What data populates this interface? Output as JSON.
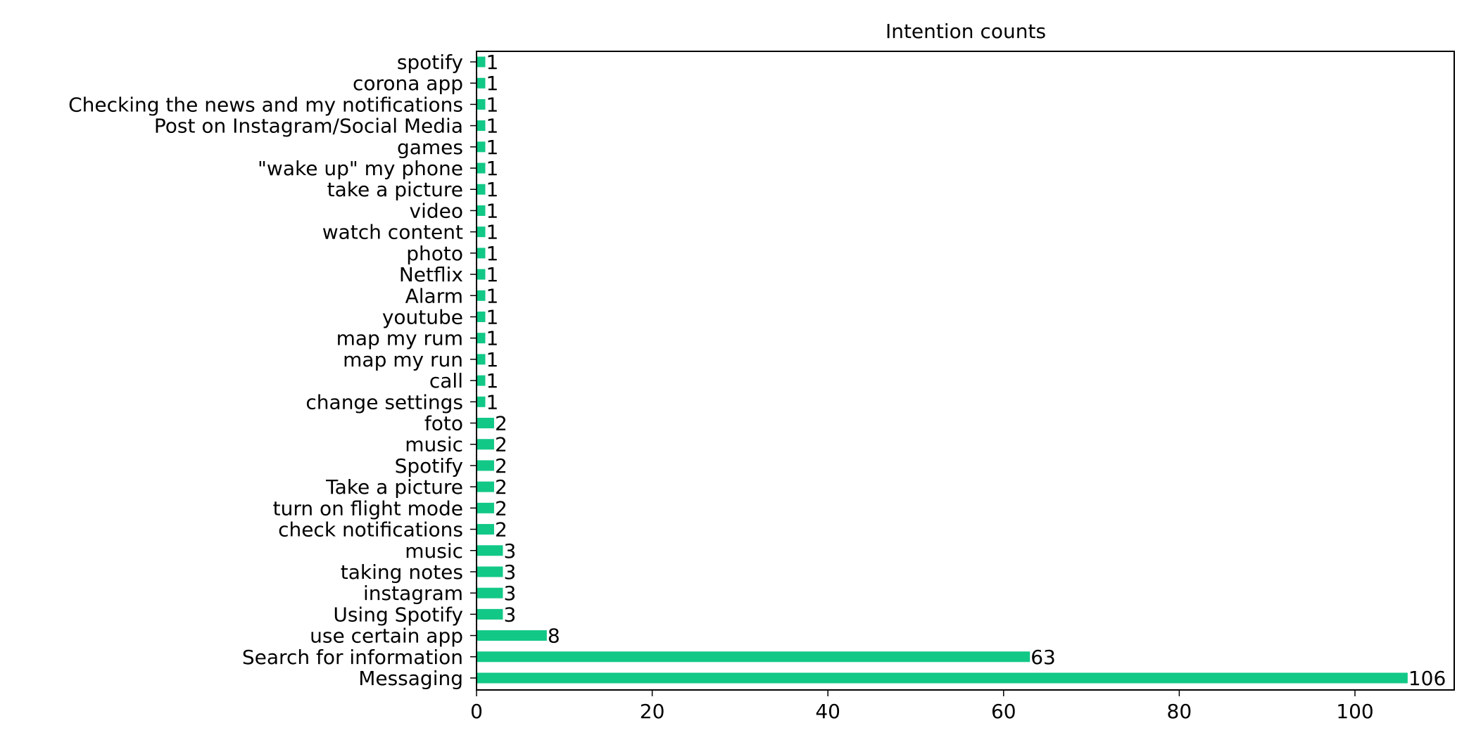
{
  "chart_data": {
    "type": "bar",
    "orientation": "horizontal",
    "title": "Intention counts",
    "xlabel": "",
    "ylabel": "",
    "xlim": [
      0,
      111.3
    ],
    "xticks": [
      0,
      20,
      40,
      60,
      80,
      100
    ],
    "grid": false,
    "bar_color": "#12c887",
    "categories": [
      "Messaging",
      "Search for information",
      "use certain app",
      "Using Spotify",
      "instagram",
      "taking notes",
      "music",
      "check notifications",
      "turn on flight mode",
      "Take a picture ",
      "Spotify",
      "music ",
      "foto",
      "change settings",
      "call",
      "map my run",
      "map my rum",
      "youtube",
      "Alarm",
      "Netflix ",
      "photo",
      "watch content",
      "video",
      "take a picture",
      "\"wake up\" my phone",
      "games",
      "Post on Instagram/Social Media ",
      "Checking the news and my notifications ",
      "corona app",
      "spotify"
    ],
    "values": [
      106,
      63,
      8,
      3,
      3,
      3,
      3,
      2,
      2,
      2,
      2,
      2,
      2,
      1,
      1,
      1,
      1,
      1,
      1,
      1,
      1,
      1,
      1,
      1,
      1,
      1,
      1,
      1,
      1,
      1
    ]
  }
}
